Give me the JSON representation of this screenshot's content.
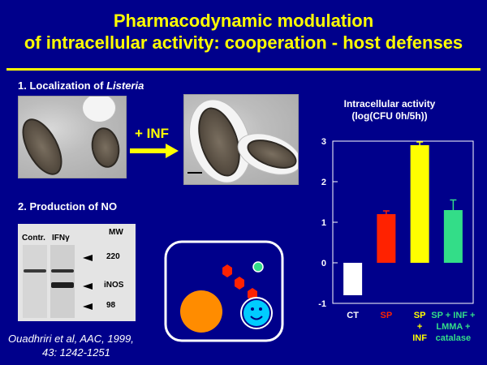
{
  "slide": {
    "title_line1": "Pharmacodynamic modulation",
    "title_line2": "of intracellular activity: cooperation - host defenses"
  },
  "section1": {
    "label_prefix": "1. Localization of ",
    "label_italic": "Listeria",
    "arrow_label": "+ INF"
  },
  "section2": {
    "label": "2. Production of NO",
    "gel": {
      "col_contr": "Contr.",
      "col_ifn": "IFNγ",
      "col_mw": "MW",
      "markers": [
        "220",
        "iNOS",
        "98"
      ]
    }
  },
  "citation": {
    "line1": "Ouadhriri et al, AAC, 1999,",
    "line2": "43: 1242-1251"
  },
  "chart_title": {
    "line1": "Intracellular activity",
    "line2": "(log(CFU 0h/5h))"
  },
  "chart_data": {
    "type": "bar",
    "title": "Intracellular activity (log(CFU 0h/5h))",
    "ylim": [
      -1,
      3
    ],
    "yticks": [
      "3",
      "2",
      "1",
      "0",
      "-1"
    ],
    "categories": [
      {
        "lines": [
          "CT"
        ],
        "value": -0.8,
        "error": 0,
        "color": "#ffffff",
        "label_color": "#ffffff"
      },
      {
        "lines": [
          "SP"
        ],
        "value": 1.2,
        "error": 0.08,
        "color": "#ff2200",
        "label_color": "#ff2200"
      },
      {
        "lines": [
          "SP",
          "+",
          "INF"
        ],
        "value": 2.9,
        "error": 0.08,
        "color": "#ffff00",
        "label_color": "#ffff00"
      },
      {
        "lines": [
          "SP + INF +",
          "LMMA +",
          "catalase"
        ],
        "value": 1.3,
        "error": 0.25,
        "color": "#33dd88",
        "label_color": "#33dd88"
      }
    ]
  }
}
